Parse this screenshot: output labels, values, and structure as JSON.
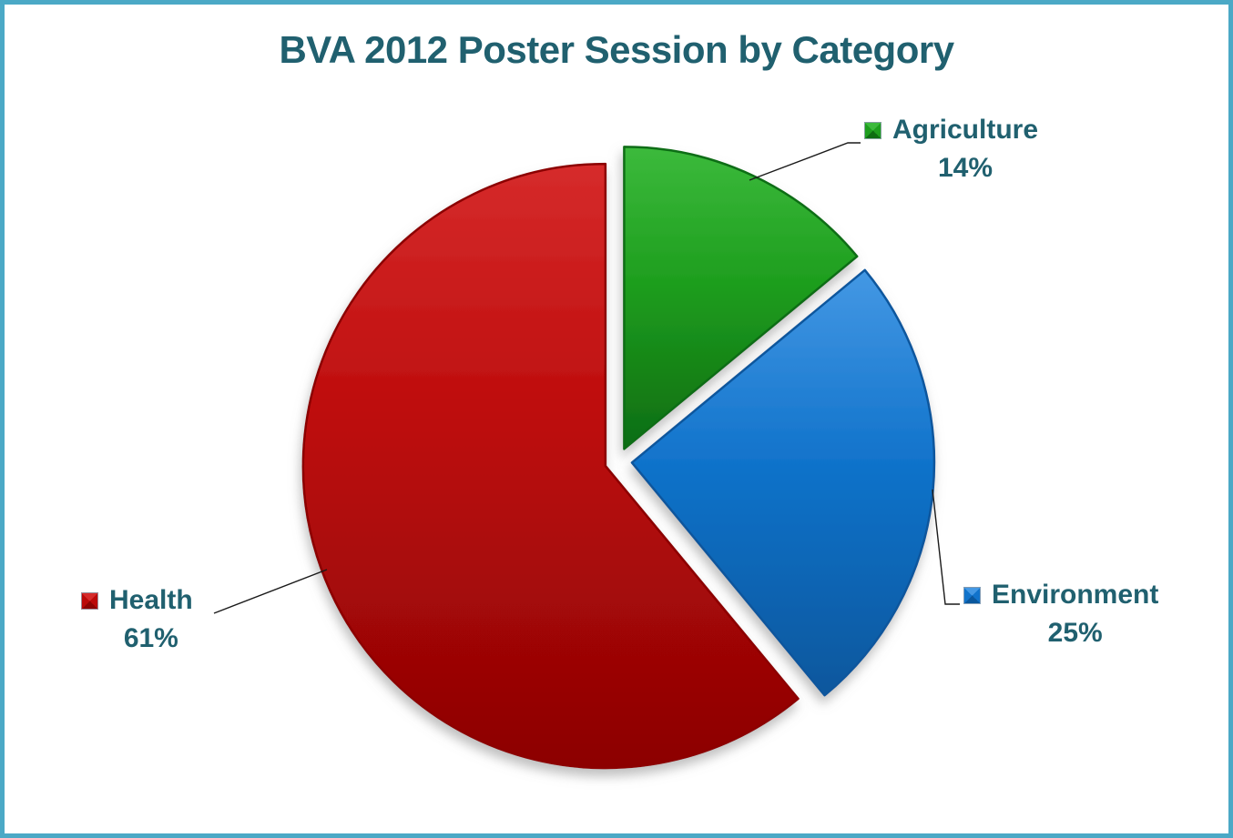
{
  "frame": {
    "border_color": "#4BA9C6",
    "background_color": "#FFFFFF"
  },
  "chart_data": {
    "type": "pie",
    "title": "BVA 2012 Poster Session by Category",
    "title_color": "#20606F",
    "label_color": "#20606F",
    "leader_line_color": "#1a1a1a",
    "direction": "clockwise",
    "start_angle_deg": 0,
    "exploded": true,
    "legend_position": "callouts-around-pie",
    "slices": [
      {
        "label": "Agriculture",
        "value_pct": 14,
        "display": "14%",
        "color": "#1E9E1E",
        "color_light": "#3CBA3C",
        "color_dark": "#0E6D12"
      },
      {
        "label": "Environment",
        "value_pct": 25,
        "display": "25%",
        "color": "#1173CB",
        "color_light": "#4498E4",
        "color_dark": "#0A579D"
      },
      {
        "label": "Health",
        "value_pct": 61,
        "display": "61%",
        "color": "#BB0A0A",
        "color_light": "#D62B2B",
        "color_dark": "#8C0404"
      }
    ]
  }
}
